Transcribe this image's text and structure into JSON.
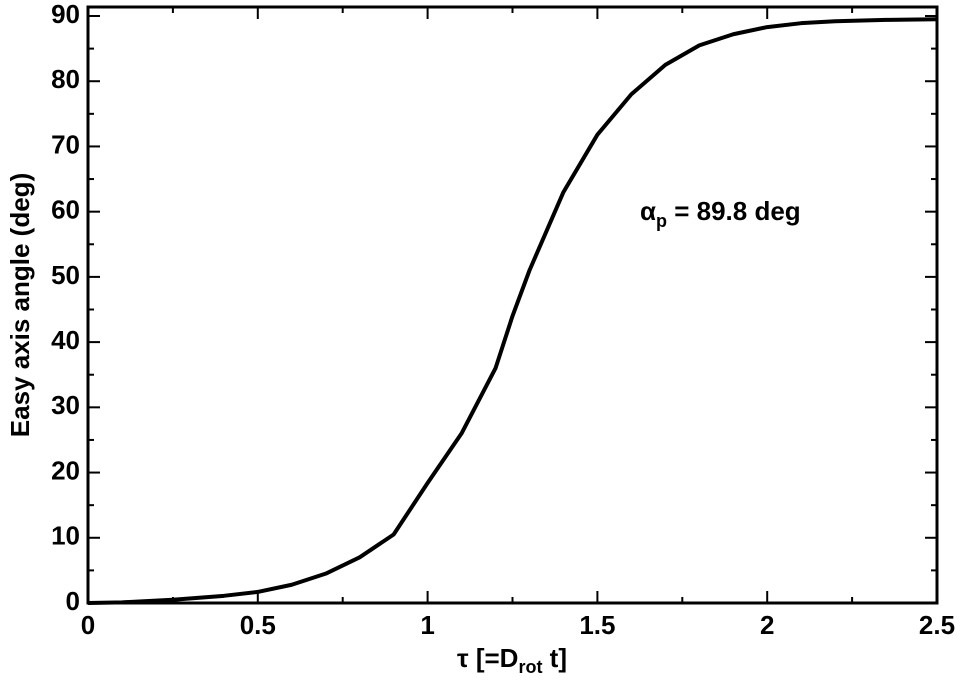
{
  "chart_data": {
    "type": "line",
    "xlabel": {
      "main": "τ [=D",
      "sub": "rot",
      "tail": " t]"
    },
    "ylabel": "Easy axis angle (deg)",
    "annotation": {
      "main": "α",
      "sub": "p",
      "tail": " = 89.8 deg"
    },
    "x": [
      0,
      0.1,
      0.25,
      0.4,
      0.5,
      0.6,
      0.7,
      0.8,
      0.9,
      1.0,
      1.1,
      1.2,
      1.25,
      1.3,
      1.4,
      1.5,
      1.6,
      1.7,
      1.8,
      1.9,
      2.0,
      2.1,
      2.2,
      2.35,
      2.5
    ],
    "series": [
      {
        "color": "#000000",
        "values": [
          0,
          0.1,
          0.5,
          1.1,
          1.7,
          2.8,
          4.5,
          7,
          10.5,
          18.4,
          26,
          36,
          44,
          51,
          63,
          71.8,
          78,
          82.5,
          85.5,
          87.2,
          88.3,
          88.9,
          89.2,
          89.4,
          89.5
        ]
      }
    ],
    "xlim": [
      0,
      2.5
    ],
    "xticks": [
      0,
      0.5,
      1,
      1.5,
      2,
      2.5
    ],
    "xminor_ticks": [
      0.25,
      0.75,
      1.25,
      1.75,
      2.25
    ],
    "ylim": [
      0,
      90
    ],
    "yticks": [
      0,
      10,
      20,
      30,
      40,
      50,
      60,
      70,
      80,
      90
    ],
    "yminor_ticks": [
      5,
      15,
      25,
      35,
      45,
      55,
      65,
      75,
      85
    ]
  }
}
